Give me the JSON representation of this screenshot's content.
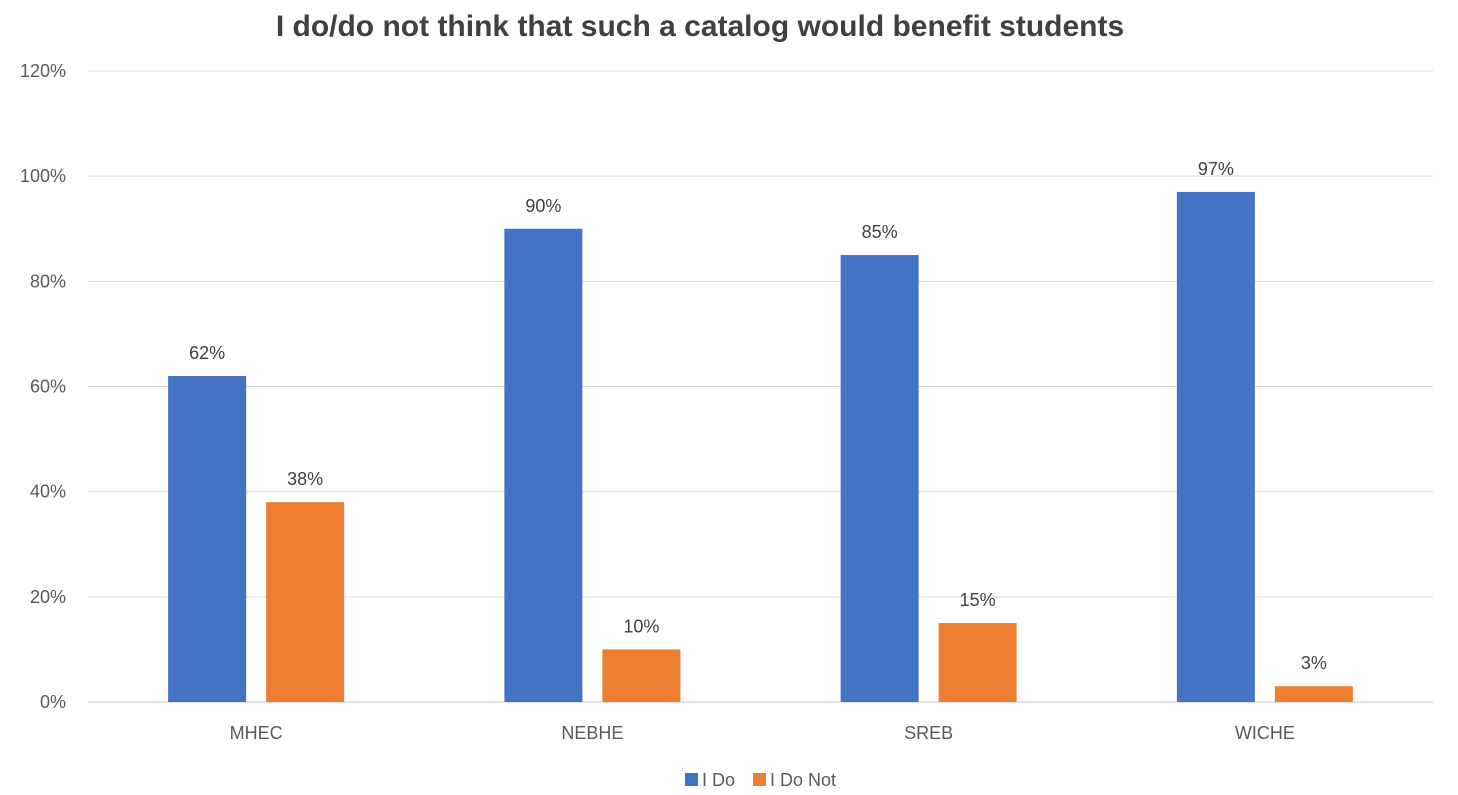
{
  "chart_data": {
    "type": "bar",
    "title": "I do/do not think that such a catalog would benefit students",
    "categories": [
      "MHEC",
      "NEBHE",
      "SREB",
      "WICHE"
    ],
    "series": [
      {
        "name": "I Do",
        "color": "#4472C4",
        "values": [
          62,
          90,
          85,
          97
        ],
        "labels": [
          "62%",
          "90%",
          "85%",
          "97%"
        ]
      },
      {
        "name": "I Do Not",
        "color": "#ED7D31",
        "values": [
          38,
          10,
          15,
          3
        ],
        "labels": [
          "38%",
          "10%",
          "15%",
          "3%"
        ]
      }
    ],
    "ylim": [
      0,
      120
    ],
    "yticks": [
      0,
      20,
      40,
      60,
      80,
      100,
      120
    ],
    "ytick_labels": [
      "0%",
      "20%",
      "40%",
      "60%",
      "80%",
      "100%",
      "120%"
    ],
    "y_unit": "%",
    "grid": true,
    "legend_position": "bottom"
  }
}
